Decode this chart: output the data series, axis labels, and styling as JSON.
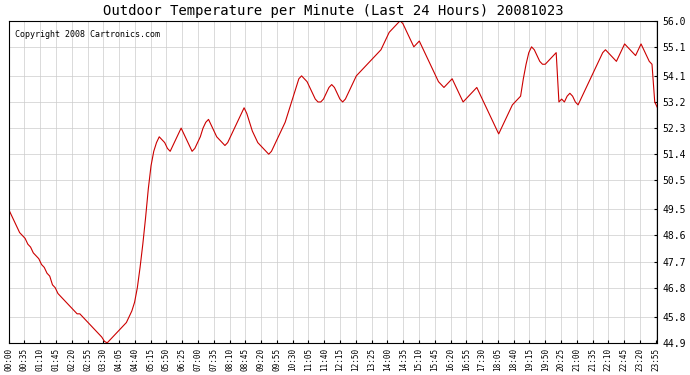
{
  "title": "Outdoor Temperature per Minute (Last 24 Hours) 20081023",
  "copyright_text": "Copyright 2008 Cartronics.com",
  "line_color": "#cc0000",
  "bg_color": "#ffffff",
  "plot_bg_color": "#ffffff",
  "grid_color": "#cccccc",
  "ylim": [
    44.9,
    56.0
  ],
  "yticks": [
    44.9,
    45.8,
    46.8,
    47.7,
    48.6,
    49.5,
    50.5,
    51.4,
    52.3,
    53.2,
    54.1,
    55.1,
    56.0
  ],
  "x_tick_labels": [
    "00:00",
    "00:35",
    "01:10",
    "01:45",
    "02:20",
    "02:55",
    "03:30",
    "04:05",
    "04:40",
    "05:15",
    "05:50",
    "06:25",
    "07:00",
    "07:35",
    "08:10",
    "08:45",
    "09:20",
    "09:55",
    "10:30",
    "11:05",
    "11:40",
    "12:15",
    "12:50",
    "13:25",
    "14:00",
    "14:35",
    "15:10",
    "15:45",
    "16:20",
    "16:55",
    "17:30",
    "18:05",
    "18:40",
    "19:15",
    "19:50",
    "20:25",
    "21:00",
    "21:35",
    "22:10",
    "22:45",
    "23:20",
    "23:55"
  ],
  "temperature_data": [
    49.5,
    49.3,
    49.1,
    48.9,
    48.7,
    48.6,
    48.5,
    48.3,
    48.2,
    48.0,
    47.9,
    47.8,
    47.6,
    47.5,
    47.3,
    47.2,
    46.9,
    46.8,
    46.6,
    46.5,
    46.4,
    46.3,
    46.2,
    46.1,
    46.0,
    45.9,
    45.9,
    45.8,
    45.7,
    45.6,
    45.5,
    45.4,
    45.3,
    45.2,
    45.1,
    44.95,
    44.9,
    45.0,
    45.1,
    45.2,
    45.3,
    45.4,
    45.5,
    45.6,
    45.8,
    46.0,
    46.3,
    46.8,
    47.5,
    48.3,
    49.2,
    50.2,
    51.0,
    51.5,
    51.8,
    52.0,
    51.9,
    51.8,
    51.6,
    51.5,
    51.7,
    51.9,
    52.1,
    52.3,
    52.1,
    51.9,
    51.7,
    51.5,
    51.6,
    51.8,
    52.0,
    52.3,
    52.5,
    52.6,
    52.4,
    52.2,
    52.0,
    51.9,
    51.8,
    51.7,
    51.8,
    52.0,
    52.2,
    52.4,
    52.6,
    52.8,
    53.0,
    52.8,
    52.5,
    52.2,
    52.0,
    51.8,
    51.7,
    51.6,
    51.5,
    51.4,
    51.5,
    51.7,
    51.9,
    52.1,
    52.3,
    52.5,
    52.8,
    53.1,
    53.4,
    53.7,
    54.0,
    54.1,
    54.0,
    53.9,
    53.7,
    53.5,
    53.3,
    53.2,
    53.2,
    53.3,
    53.5,
    53.7,
    53.8,
    53.7,
    53.5,
    53.3,
    53.2,
    53.3,
    53.5,
    53.7,
    53.9,
    54.1,
    54.2,
    54.3,
    54.4,
    54.5,
    54.6,
    54.7,
    54.8,
    54.9,
    55.0,
    55.2,
    55.4,
    55.6,
    55.7,
    55.8,
    55.9,
    56.0,
    55.9,
    55.7,
    55.5,
    55.3,
    55.1,
    55.2,
    55.3,
    55.1,
    54.9,
    54.7,
    54.5,
    54.3,
    54.1,
    53.9,
    53.8,
    53.7,
    53.8,
    53.9,
    54.0,
    53.8,
    53.6,
    53.4,
    53.2,
    53.3,
    53.4,
    53.5,
    53.6,
    53.7,
    53.5,
    53.3,
    53.1,
    52.9,
    52.7,
    52.5,
    52.3,
    52.1,
    52.3,
    52.5,
    52.7,
    52.9,
    53.1,
    53.2,
    53.3,
    53.4,
    54.0,
    54.5,
    54.9,
    55.1,
    55.0,
    54.8,
    54.6,
    54.5,
    54.5,
    54.6,
    54.7,
    54.8,
    54.9,
    53.2,
    53.3,
    53.2,
    53.4,
    53.5,
    53.4,
    53.2,
    53.1,
    53.3,
    53.5,
    53.7,
    53.9,
    54.1,
    54.3,
    54.5,
    54.7,
    54.9,
    55.0,
    54.9,
    54.8,
    54.7,
    54.6,
    54.8,
    55.0,
    55.2,
    55.1,
    55.0,
    54.9,
    54.8,
    55.0,
    55.2,
    55.0,
    54.8,
    54.6,
    54.5,
    53.2,
    53.0
  ]
}
